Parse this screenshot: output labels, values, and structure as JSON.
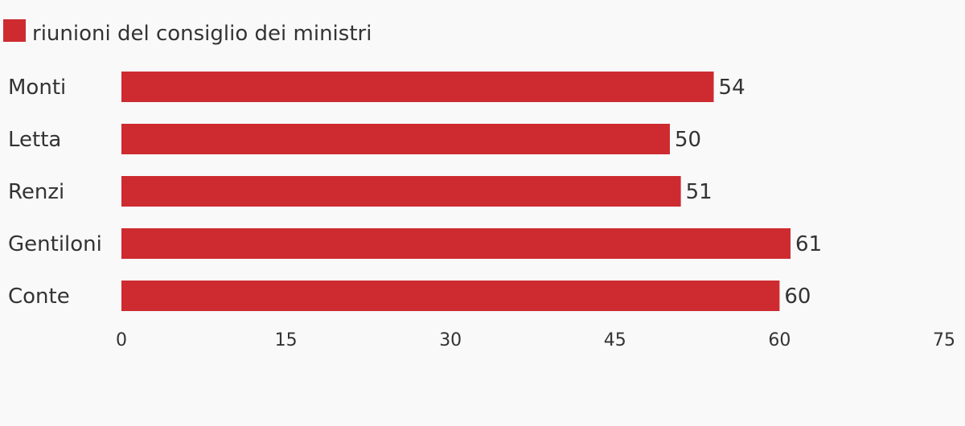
{
  "chart_data": {
    "type": "bar",
    "orientation": "horizontal",
    "categories": [
      "Monti",
      "Letta",
      "Renzi",
      "Gentiloni",
      "Conte"
    ],
    "series": [
      {
        "name": "riunioni del consiglio dei ministri",
        "values": [
          54,
          50,
          51,
          61,
          60
        ],
        "color": "#cd2b30"
      }
    ],
    "xlim": [
      0,
      75
    ],
    "xticks": [
      0,
      15,
      30,
      45,
      60,
      75
    ],
    "grid": false,
    "legend_position": "top-left",
    "data_labels": true
  }
}
